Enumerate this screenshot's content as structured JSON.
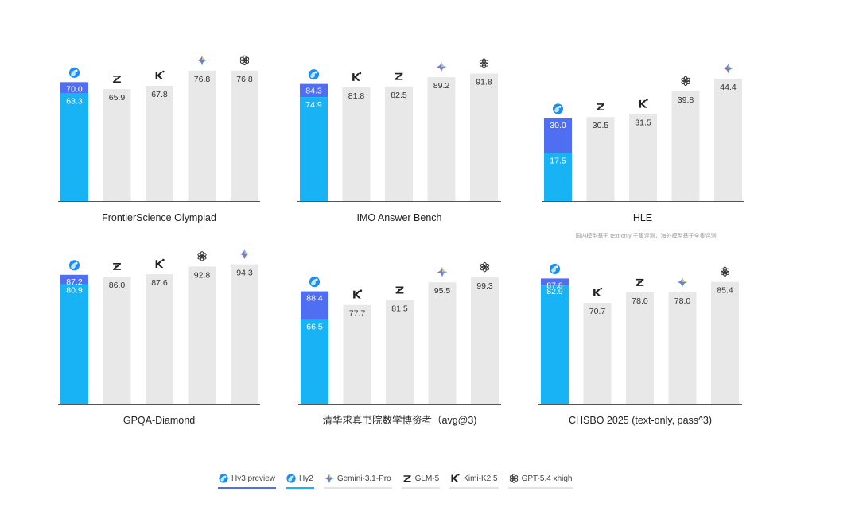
{
  "colors": {
    "hy3": "#4f6ef2",
    "hy2": "#18b3f5",
    "gray": "#e8e8e8",
    "gemini": "#4a8af6"
  },
  "models": {
    "hy3": "Hy3 preview",
    "hy2": "Hy2",
    "gemini": "Gemini-3.1-Pro",
    "glm": "GLM-5",
    "kimi": "Kimi-K2.5",
    "gpt": "GPT-5.4 xhigh"
  },
  "legend": [
    {
      "key": "hy3",
      "icon": "hy-icon"
    },
    {
      "key": "hy2",
      "icon": "hy-icon"
    },
    {
      "key": "gemini",
      "icon": "gemini-icon"
    },
    {
      "key": "glm",
      "icon": "glm-icon"
    },
    {
      "key": "kimi",
      "icon": "kimi-icon"
    },
    {
      "key": "gpt",
      "icon": "gpt-icon"
    }
  ],
  "chart_data": [
    {
      "type": "bar",
      "title": "FrontierScience Olympiad",
      "ylim": [
        0,
        100
      ],
      "hy": {
        "hy3": 70.0,
        "hy2": 63.3
      },
      "others": [
        {
          "model": "glm",
          "value": 65.9
        },
        {
          "model": "kimi",
          "value": 67.8
        },
        {
          "model": "gemini",
          "value": 76.8
        },
        {
          "model": "gpt",
          "value": 76.8
        }
      ]
    },
    {
      "type": "bar",
      "title": "IMO Answer Bench",
      "ylim": [
        0,
        100
      ],
      "hy": {
        "hy3": 84.3,
        "hy2": 74.9
      },
      "others": [
        {
          "model": "kimi",
          "value": 81.8
        },
        {
          "model": "glm",
          "value": 82.5
        },
        {
          "model": "gemini",
          "value": 89.2
        },
        {
          "model": "gpt",
          "value": 91.8
        }
      ]
    },
    {
      "type": "bar",
      "title": "HLE",
      "note": "国内模型基于 text-only 子集评测，海外模型基于全集评测",
      "ylim": [
        0,
        50
      ],
      "hy": {
        "hy3": 30.0,
        "hy2": 17.5
      },
      "others": [
        {
          "model": "glm",
          "value": 30.5
        },
        {
          "model": "kimi",
          "value": 31.5
        },
        {
          "model": "gpt",
          "value": 39.8
        },
        {
          "model": "gemini",
          "value": 44.4
        }
      ]
    },
    {
      "type": "bar",
      "title": "GPQA-Diamond",
      "ylim": [
        0,
        100
      ],
      "hy": {
        "hy3": 87.2,
        "hy2": 80.9
      },
      "others": [
        {
          "model": "glm",
          "value": 86.0
        },
        {
          "model": "kimi",
          "value": 87.6
        },
        {
          "model": "gpt",
          "value": 92.8
        },
        {
          "model": "gemini",
          "value": 94.3
        }
      ]
    },
    {
      "type": "bar",
      "title": "清华求真书院数学博资考（avg@3)",
      "ylim": [
        0,
        100
      ],
      "hy": {
        "hy3": 88.4,
        "hy2": 66.5
      },
      "others": [
        {
          "model": "kimi",
          "value": 77.7
        },
        {
          "model": "glm",
          "value": 81.5
        },
        {
          "model": "gemini",
          "value": 95.5
        },
        {
          "model": "gpt",
          "value": 99.3
        }
      ]
    },
    {
      "type": "bar",
      "title": "CHSBO 2025 (text-only, pass^3)",
      "ylim": [
        0,
        90
      ],
      "hy": {
        "hy3": 87.8,
        "hy2": 82.9
      },
      "others": [
        {
          "model": "kimi",
          "value": 70.7
        },
        {
          "model": "glm",
          "value": 78.0
        },
        {
          "model": "gemini",
          "value": 78.0
        },
        {
          "model": "gpt",
          "value": 85.4
        }
      ]
    }
  ]
}
